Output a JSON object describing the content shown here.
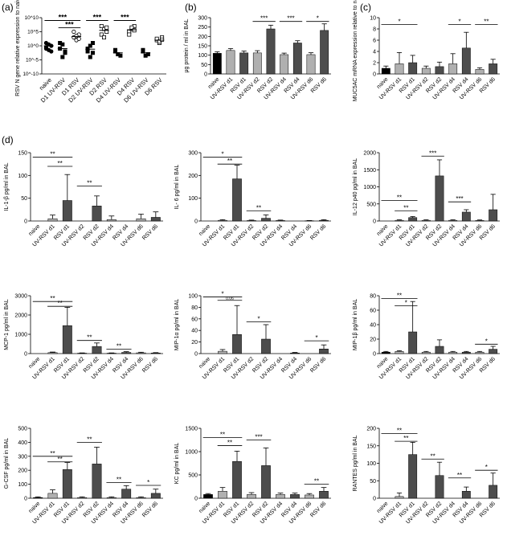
{
  "figure": {
    "panel_labels": [
      "(a)",
      "(b)",
      "(c)",
      "(d)"
    ]
  },
  "colors": {
    "naive": "#000000",
    "uv": "#b0b0b0",
    "rsv": "#4d4d4d",
    "axis": "#000000"
  },
  "chart_data": [
    {
      "id": "a",
      "panel_label": "(a)",
      "type": "scatter",
      "ylabel": "RSV N gene relative expression to naive",
      "yscale": "log",
      "yticks": [
        "10^-10",
        "10^-5",
        "10^0",
        "10^5",
        "10^10"
      ],
      "ytick_values": [
        -10,
        -5,
        0,
        5,
        10
      ],
      "ylim": [
        -10,
        10
      ],
      "categories": [
        "naive",
        "D1 UV-RSV",
        "D1 RSV",
        "D2 UV-RSV",
        "D2 RSV",
        "D4 UV-RSV",
        "D4 RSV",
        "D6 UV-RSV",
        "D6 RSV"
      ],
      "marker": [
        "filled-circle",
        "filled-square",
        "open-circle",
        "filled-square",
        "open-square",
        "filled-square",
        "open-square",
        "filled-square",
        "open-square"
      ],
      "points_log10": [
        [
          -1,
          0.5,
          -2,
          1,
          -1.5,
          0,
          -0.5
        ],
        [
          -1,
          0.5,
          -2,
          1,
          -4,
          -2.5
        ],
        [
          3,
          2,
          4,
          5,
          3.5,
          2.5
        ],
        [
          -1,
          0,
          1,
          -2,
          -4,
          -2.5
        ],
        [
          4,
          6,
          5,
          7,
          3,
          6.5
        ],
        [
          -2,
          -3,
          -3.5,
          -1.5
        ],
        [
          5,
          6,
          7,
          4,
          6.5,
          5.5
        ],
        [
          -2,
          -3.5,
          -3,
          -1.5
        ],
        [
          2,
          1,
          3,
          2.5,
          1.5,
          2.2
        ]
      ],
      "means_log10": [
        0,
        -1,
        3.3,
        -1.2,
        5.5,
        -2.5,
        5.7,
        -2.5,
        2
      ],
      "significance": [
        {
          "from": 0,
          "to": 2,
          "label": "***",
          "level": 0
        },
        {
          "from": 1,
          "to": 2,
          "label": "***",
          "level": 1
        },
        {
          "from": 3,
          "to": 4,
          "label": "***",
          "level": 0
        },
        {
          "from": 5,
          "to": 6,
          "label": "***",
          "level": 0
        }
      ]
    },
    {
      "id": "b",
      "panel_label": "(b)",
      "type": "bar",
      "ylabel": "μg protein / ml in BAL",
      "ylim": [
        0,
        300
      ],
      "yticks": [
        0,
        50,
        100,
        150,
        200,
        250,
        300
      ],
      "categories": [
        "naive",
        "UV-RSV d1",
        "RSV d1",
        "UV-RSV d2",
        "RSV d2",
        "UV-RSV d4",
        "RSV d4",
        "UV-RSV d6",
        "RSV d6"
      ],
      "values": [
        110,
        125,
        112,
        112,
        240,
        103,
        165,
        103,
        232
      ],
      "errors": [
        8,
        10,
        10,
        12,
        20,
        8,
        12,
        10,
        35
      ],
      "significance": [
        {
          "from": 3,
          "to": 4,
          "label": "***",
          "y": 280
        },
        {
          "from": 5,
          "to": 6,
          "label": "***",
          "y": 280
        },
        {
          "from": 7,
          "to": 8,
          "label": "*",
          "y": 280
        }
      ]
    },
    {
      "id": "c",
      "panel_label": "(c)",
      "type": "bar",
      "ylabel": "MUC5AC mRNA expression relative to naive",
      "ylim": [
        0,
        10
      ],
      "yticks": [
        0,
        2,
        4,
        6,
        8,
        10
      ],
      "categories": [
        "naive",
        "UV-RSV d1",
        "RSV d1",
        "UV-RSV d2",
        "RSV d2",
        "UV-RSV d4",
        "RSV d4",
        "UV-RSV d6",
        "RSV d6"
      ],
      "values": [
        1,
        1.8,
        2,
        1,
        1.3,
        1.8,
        4.6,
        0.8,
        1.8
      ],
      "errors": [
        0.4,
        2,
        1.3,
        0.4,
        0.8,
        1.8,
        2.8,
        0.3,
        0.8
      ],
      "significance": [
        {
          "from": 0,
          "to": 2,
          "label": "*",
          "y": 8.8
        },
        {
          "from": 5,
          "to": 6,
          "label": "*",
          "y": 8.8
        },
        {
          "from": 7,
          "to": 8,
          "label": "**",
          "y": 8.8
        }
      ]
    },
    {
      "id": "il1b",
      "panel_label": "(d)",
      "type": "bar",
      "ylabel": "IL-1-β pg/ml in BAL",
      "ylim": [
        0,
        150
      ],
      "yticks": [
        0,
        50,
        100,
        150
      ],
      "categories": [
        "naive",
        "UV-RSV d1",
        "RSV d1",
        "UV-RSV d2",
        "RSV d2",
        "UV-RSV d4",
        "RSV d4",
        "UV-RSV d6",
        "RSV d6"
      ],
      "values": [
        0,
        5,
        45,
        0,
        33,
        3,
        0,
        5,
        8
      ],
      "errors": [
        0,
        8,
        57,
        0,
        22,
        8,
        0,
        10,
        12
      ],
      "significance": [
        {
          "from": 0,
          "to": 2,
          "label": "**",
          "y": 140
        },
        {
          "from": 1,
          "to": 2,
          "label": "**",
          "y": 120
        },
        {
          "from": 3,
          "to": 4,
          "label": "**",
          "y": 77
        }
      ]
    },
    {
      "id": "il6",
      "panel_label": "",
      "type": "bar",
      "ylabel": "IL- 6 pg/ml in BAL",
      "ylim": [
        0,
        300
      ],
      "yticks": [
        0,
        100,
        200,
        300
      ],
      "categories": [
        "naive",
        "UV-RSV d1",
        "RSV d1",
        "UV-RSV d2",
        "RSV d2",
        "UV-RSV d4",
        "RSV d4",
        "UV-RSV d6",
        "RSV d6"
      ],
      "values": [
        0,
        3,
        185,
        2,
        12,
        2,
        0,
        1,
        3
      ],
      "errors": [
        0,
        3,
        60,
        2,
        15,
        2,
        0,
        1,
        3
      ],
      "significance": [
        {
          "from": 0,
          "to": 2,
          "label": "*",
          "y": 280
        },
        {
          "from": 1,
          "to": 2,
          "label": "**",
          "y": 250
        },
        {
          "from": 3,
          "to": 4,
          "label": "**",
          "y": 45
        }
      ]
    },
    {
      "id": "il12",
      "panel_label": "",
      "type": "bar",
      "ylabel": "IL-12 p40 pg/ml in BAL",
      "ylim": [
        0,
        2000
      ],
      "yticks": [
        0,
        500,
        1000,
        1500,
        2000
      ],
      "categories": [
        "naive",
        "UV-RSV d1",
        "RSV d1",
        "UV-RSV d2",
        "RSV d2",
        "UV-RSV d4",
        "RSV d4",
        "UV-RSV d6",
        "RSV d6"
      ],
      "values": [
        0,
        20,
        100,
        20,
        1320,
        20,
        260,
        15,
        330
      ],
      "errors": [
        0,
        15,
        30,
        15,
        470,
        15,
        70,
        15,
        450
      ],
      "significance": [
        {
          "from": 0,
          "to": 2,
          "label": "**",
          "y": 600
        },
        {
          "from": 1,
          "to": 2,
          "label": "**",
          "y": 300
        },
        {
          "from": 3,
          "to": 4,
          "label": "***",
          "y": 1900
        },
        {
          "from": 5,
          "to": 6,
          "label": "***",
          "y": 560
        }
      ]
    },
    {
      "id": "mcp1",
      "panel_label": "",
      "type": "bar",
      "ylabel": "MCP-1 pg/ml in BAL",
      "ylim": [
        0,
        3000
      ],
      "yticks": [
        0,
        1000,
        2000,
        3000
      ],
      "categories": [
        "naive",
        "UV-RSV d1",
        "RSV d1",
        "UV-RSV d2",
        "RSV d2",
        "UV-RSV d4",
        "RSV d4",
        "UV-RSV d6",
        "RSV d6"
      ],
      "values": [
        0,
        50,
        1450,
        20,
        370,
        20,
        60,
        40,
        30
      ],
      "errors": [
        0,
        30,
        950,
        15,
        180,
        15,
        40,
        30,
        20
      ],
      "significance": [
        {
          "from": 0,
          "to": 2,
          "label": "**",
          "y": 2700
        },
        {
          "from": 1,
          "to": 2,
          "label": "**",
          "y": 2450
        },
        {
          "from": 3,
          "to": 4,
          "label": "**",
          "y": 680
        },
        {
          "from": 5,
          "to": 6,
          "label": "**",
          "y": 230
        }
      ]
    },
    {
      "id": "mip1a",
      "panel_label": "",
      "type": "bar",
      "ylabel": "MIP-1α pg/ml in BAL",
      "ylim": [
        0,
        100
      ],
      "yticks": [
        0,
        20,
        40,
        60,
        80,
        100
      ],
      "categories": [
        "naive",
        "UV-RSV d1",
        "RSV d1",
        "UV-RSV d2",
        "RSV d2",
        "UV-RSV d4",
        "RSV d4",
        "UV-RSV d6",
        "RSV d6"
      ],
      "values": [
        0,
        4,
        33,
        0,
        25,
        0,
        1,
        0,
        8
      ],
      "errors": [
        0,
        3,
        50,
        0,
        25,
        0,
        1,
        0,
        7
      ],
      "significance": [
        {
          "from": 0,
          "to": 2,
          "label": "*",
          "y": 98
        },
        {
          "from": 1,
          "to": 2,
          "label": "0.06",
          "y": 92
        },
        {
          "from": 3,
          "to": 4,
          "label": "*",
          "y": 55
        },
        {
          "from": 7,
          "to": 8,
          "label": "*",
          "y": 22
        }
      ]
    },
    {
      "id": "mip1b",
      "panel_label": "",
      "type": "bar",
      "ylabel": "MIP-1β pg/ml in BAL",
      "ylim": [
        0,
        80
      ],
      "yticks": [
        0,
        20,
        40,
        60,
        80
      ],
      "categories": [
        "naive",
        "UV-RSV d1",
        "RSV d1",
        "UV-RSV d2",
        "RSV d2",
        "UV-RSV d4",
        "RSV d4",
        "UV-RSV d6",
        "RSV d6"
      ],
      "values": [
        2,
        3,
        30,
        2,
        10,
        2,
        2,
        2,
        6
      ],
      "errors": [
        1,
        1,
        42,
        1,
        9,
        1,
        1,
        1,
        4
      ],
      "significance": [
        {
          "from": 0,
          "to": 2,
          "label": "**",
          "y": 76
        },
        {
          "from": 1,
          "to": 2,
          "label": "*",
          "y": 66
        },
        {
          "from": 7,
          "to": 8,
          "label": "*",
          "y": 13
        }
      ]
    },
    {
      "id": "gcsf",
      "panel_label": "",
      "type": "bar",
      "ylabel": "G-CSF pg/ml in BAL",
      "ylim": [
        0,
        500
      ],
      "yticks": [
        0,
        100,
        200,
        300,
        400,
        500
      ],
      "categories": [
        "naive",
        "UV-RSV d1",
        "RSV d1",
        "UV-RSV d2",
        "RSV d2",
        "UV-RSV d4",
        "RSV d4",
        "UV-RSV d6",
        "RSV d6"
      ],
      "values": [
        5,
        35,
        205,
        5,
        245,
        5,
        65,
        5,
        35
      ],
      "errors": [
        5,
        25,
        50,
        5,
        120,
        5,
        25,
        5,
        30
      ],
      "significance": [
        {
          "from": 0,
          "to": 2,
          "label": "**",
          "y": 300
        },
        {
          "from": 1,
          "to": 2,
          "label": "**",
          "y": 260
        },
        {
          "from": 3,
          "to": 4,
          "label": "**",
          "y": 400
        },
        {
          "from": 5,
          "to": 6,
          "label": "**",
          "y": 112
        },
        {
          "from": 7,
          "to": 8,
          "label": "*",
          "y": 92
        }
      ]
    },
    {
      "id": "kc",
      "panel_label": "",
      "type": "bar",
      "ylabel": "KC pg/ml in BAL",
      "ylim": [
        0,
        1500
      ],
      "yticks": [
        0,
        500,
        1000,
        1500
      ],
      "categories": [
        "naive",
        "UV-RSV d1",
        "RSV d1",
        "UV-RSV d2",
        "RSV d2",
        "UV-RSV d4",
        "RSV d4",
        "UV-RSV d6",
        "RSV d6"
      ],
      "values": [
        80,
        150,
        790,
        80,
        700,
        80,
        80,
        70,
        150
      ],
      "errors": [
        20,
        80,
        220,
        40,
        380,
        30,
        30,
        30,
        80
      ],
      "significance": [
        {
          "from": 0,
          "to": 2,
          "label": "**",
          "y": 1300
        },
        {
          "from": 1,
          "to": 2,
          "label": "**",
          "y": 1130
        },
        {
          "from": 3,
          "to": 4,
          "label": "***",
          "y": 1250
        },
        {
          "from": 7,
          "to": 8,
          "label": "**",
          "y": 300
        }
      ]
    },
    {
      "id": "rantes",
      "panel_label": "",
      "type": "bar",
      "ylabel": "RANTES pg/ml in BAL",
      "ylim": [
        0,
        200
      ],
      "yticks": [
        0,
        50,
        100,
        150,
        200
      ],
      "categories": [
        "naive",
        "UV-RSV d1",
        "RSV d1",
        "UV-RSV d2",
        "RSV d2",
        "UV-RSV d4",
        "RSV d4",
        "UV-RSV d6",
        "RSV d6"
      ],
      "values": [
        0,
        5,
        125,
        0,
        65,
        0,
        20,
        0,
        37
      ],
      "errors": [
        0,
        10,
        35,
        0,
        38,
        0,
        12,
        0,
        35
      ],
      "significance": [
        {
          "from": 0,
          "to": 2,
          "label": "**",
          "y": 185
        },
        {
          "from": 1,
          "to": 2,
          "label": "**",
          "y": 163
        },
        {
          "from": 3,
          "to": 4,
          "label": "**",
          "y": 112
        },
        {
          "from": 5,
          "to": 6,
          "label": "**",
          "y": 58
        },
        {
          "from": 7,
          "to": 8,
          "label": "*",
          "y": 80
        }
      ]
    }
  ]
}
